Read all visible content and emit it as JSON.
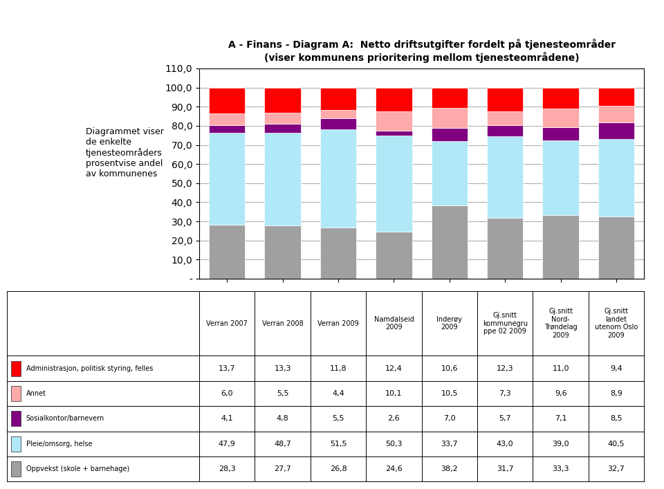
{
  "chart_data": {
    "type": "bar",
    "stacked": true,
    "title": "A - Finans - Diagram A:  Netto driftsutgifter fordelt på tjenesteområder",
    "subtitle": "(viser kommunens prioritering mellom tjenesteområdene)",
    "annotation": "Diagrammet viser\nde enkelte\ntjenesteområders\nprosentvise andel\nav kommunenes",
    "categories": [
      "Verran 2007",
      "Verran 2008",
      "Verran 2009",
      "Namdalseid\n2009",
      "Inderøy\n2009",
      "Gj.snitt\nkommunegru\nppe 02 2009",
      "Gj.snitt\nNord-\nTrøndelag\n2009",
      "Gj.snitt\nlandet\nutenom Oslo\n2009"
    ],
    "series": [
      {
        "name": "Oppvekst (skole + barnehage)",
        "color": "#a0a0a0",
        "values": [
          28.3,
          27.7,
          26.8,
          24.6,
          38.2,
          31.7,
          33.3,
          32.7
        ],
        "value_labels": [
          "28,3",
          "27,7",
          "26,8",
          "24,6",
          "38,2",
          "31,7",
          "33,3",
          "32,7"
        ]
      },
      {
        "name": "Pleie/omsorg, helse",
        "color": "#b0e8f8",
        "values": [
          47.9,
          48.7,
          51.5,
          50.3,
          33.7,
          43.0,
          39.0,
          40.5
        ],
        "value_labels": [
          "47,9",
          "48,7",
          "51,5",
          "50,3",
          "33,7",
          "43,0",
          "39,0",
          "40,5"
        ]
      },
      {
        "name": "Sosialkontor/barnevern",
        "color": "#800080",
        "values": [
          4.1,
          4.8,
          5.5,
          2.6,
          7.0,
          5.7,
          7.1,
          8.5
        ],
        "value_labels": [
          "4,1",
          "4,8",
          "5,5",
          "2,6",
          "7,0",
          "5,7",
          "7,1",
          "8,5"
        ]
      },
      {
        "name": "Annet",
        "color": "#ffaaaa",
        "values": [
          6.0,
          5.5,
          4.4,
          10.1,
          10.5,
          7.3,
          9.6,
          8.9
        ],
        "value_labels": [
          "6,0",
          "5,5",
          "4,4",
          "10,1",
          "10,5",
          "7,3",
          "9,6",
          "8,9"
        ]
      },
      {
        "name": "Administrasjon, politisk styring, felles",
        "color": "#ff0000",
        "values": [
          13.7,
          13.3,
          11.8,
          12.4,
          10.6,
          12.3,
          11.0,
          9.4
        ],
        "value_labels": [
          "13,7",
          "13,3",
          "11,8",
          "12,4",
          "10,6",
          "12,3",
          "11,0",
          "9,4"
        ]
      }
    ],
    "ylim": [
      0,
      110
    ],
    "yticks": [
      {
        "value": 0,
        "label": "-"
      },
      {
        "value": 10,
        "label": "10,0"
      },
      {
        "value": 20,
        "label": "20,0"
      },
      {
        "value": 30,
        "label": "30,0"
      },
      {
        "value": 40,
        "label": "40,0"
      },
      {
        "value": 50,
        "label": "50,0"
      },
      {
        "value": 60,
        "label": "60,0"
      },
      {
        "value": 70,
        "label": "70,0"
      },
      {
        "value": 80,
        "label": "80,0"
      },
      {
        "value": 90,
        "label": "90,0"
      },
      {
        "value": 100,
        "label": "100,0"
      },
      {
        "value": 110,
        "label": "110,0"
      }
    ],
    "grid": true
  }
}
